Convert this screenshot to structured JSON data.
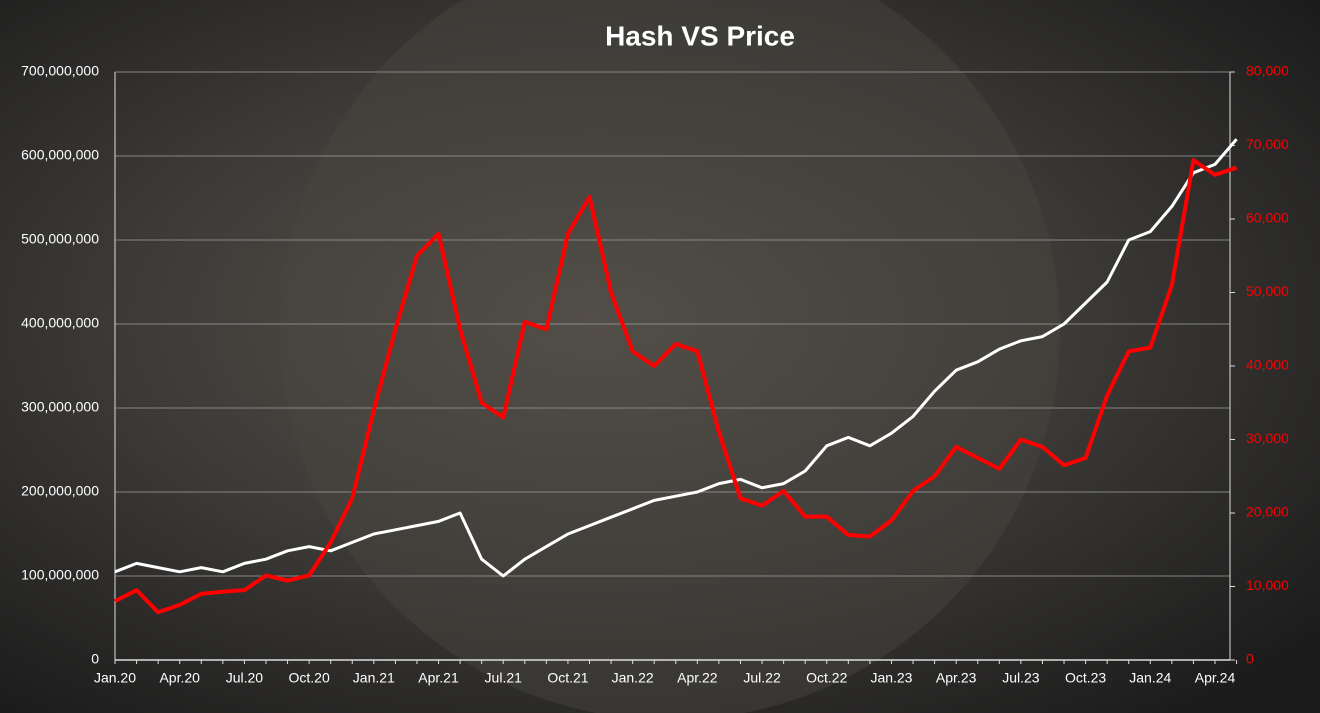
{
  "chart_data": {
    "type": "line",
    "title": "Hash VS Price",
    "categories": [
      "Jan.20",
      null,
      null,
      "Apr.20",
      null,
      null,
      "Jul.20",
      null,
      null,
      "Oct.20",
      null,
      null,
      "Jan.21",
      null,
      null,
      "Apr.21",
      null,
      null,
      "Jul.21",
      null,
      null,
      "Oct.21",
      null,
      null,
      "Jan.22",
      null,
      null,
      "Apr.22",
      null,
      null,
      "Jul.22",
      null,
      null,
      "Oct.22",
      null,
      null,
      "Jan.23",
      null,
      null,
      "Apr.23",
      null,
      null,
      "Jul.23",
      null,
      null,
      "Oct.23",
      null,
      null,
      "Jan.24",
      null,
      null,
      "Apr.24",
      null
    ],
    "series": [
      {
        "color": "#ffffff",
        "values": [
          105000000,
          115000000,
          110000000,
          105000000,
          110000000,
          105000000,
          115000000,
          120000000,
          130000000,
          135000000,
          130000000,
          140000000,
          150000000,
          155000000,
          160000000,
          165000000,
          175000000,
          120000000,
          100000000,
          120000000,
          135000000,
          150000000,
          160000000,
          170000000,
          180000000,
          190000000,
          195000000,
          200000000,
          210000000,
          215000000,
          205000000,
          210000000,
          225000000,
          255000000,
          265000000,
          255000000,
          270000000,
          290000000,
          320000000,
          345000000,
          355000000,
          370000000,
          380000000,
          385000000,
          400000000,
          425000000,
          450000000,
          500000000,
          510000000,
          540000000,
          580000000,
          590000000,
          620000000
        ]
      },
      {
        "color": "#ff0000",
        "axis": "y2",
        "values": [
          8000,
          9500,
          6500,
          7500,
          9000,
          9300,
          9500,
          11500,
          10800,
          11500,
          16000,
          22000,
          34000,
          45000,
          55000,
          58000,
          45000,
          35000,
          33000,
          46000,
          45000,
          58000,
          63000,
          50000,
          42000,
          40000,
          43000,
          42000,
          31000,
          22000,
          21000,
          23000,
          19500,
          19500,
          17000,
          16800,
          19000,
          23000,
          25000,
          29000,
          27500,
          26000,
          30000,
          29000,
          26500,
          27500,
          36000,
          42000,
          42500,
          51000,
          68000,
          66000,
          67000
        ]
      }
    ],
    "ylim": [
      0,
      700000000
    ],
    "yticks": [
      0,
      {
        "value": 100000000,
        "label": "100,000,000"
      },
      {
        "value": 200000000,
        "label": "200,000,000"
      },
      {
        "value": 300000000,
        "label": "300,000,000"
      },
      {
        "value": 400000000,
        "label": "400,000,000"
      },
      {
        "value": 500000000,
        "label": "500,000,000"
      },
      {
        "value": 600000000,
        "label": "600,000,000"
      },
      {
        "value": 700000000,
        "label": "700,000,000"
      }
    ],
    "y2lim": [
      0,
      80000
    ],
    "y2ticks": [
      0,
      {
        "value": 10000,
        "label": "10,000"
      },
      {
        "value": 20000,
        "label": "20,000"
      },
      {
        "value": 30000,
        "label": "30,000"
      },
      {
        "value": 40000,
        "label": "40,000"
      },
      {
        "value": 50000,
        "label": "50,000"
      },
      {
        "value": 60000,
        "label": "60,000"
      },
      {
        "value": 70000,
        "label": "70,000"
      },
      {
        "value": 80000,
        "label": "80,000"
      }
    ],
    "y2color": "#ff0000",
    "grid": true
  }
}
